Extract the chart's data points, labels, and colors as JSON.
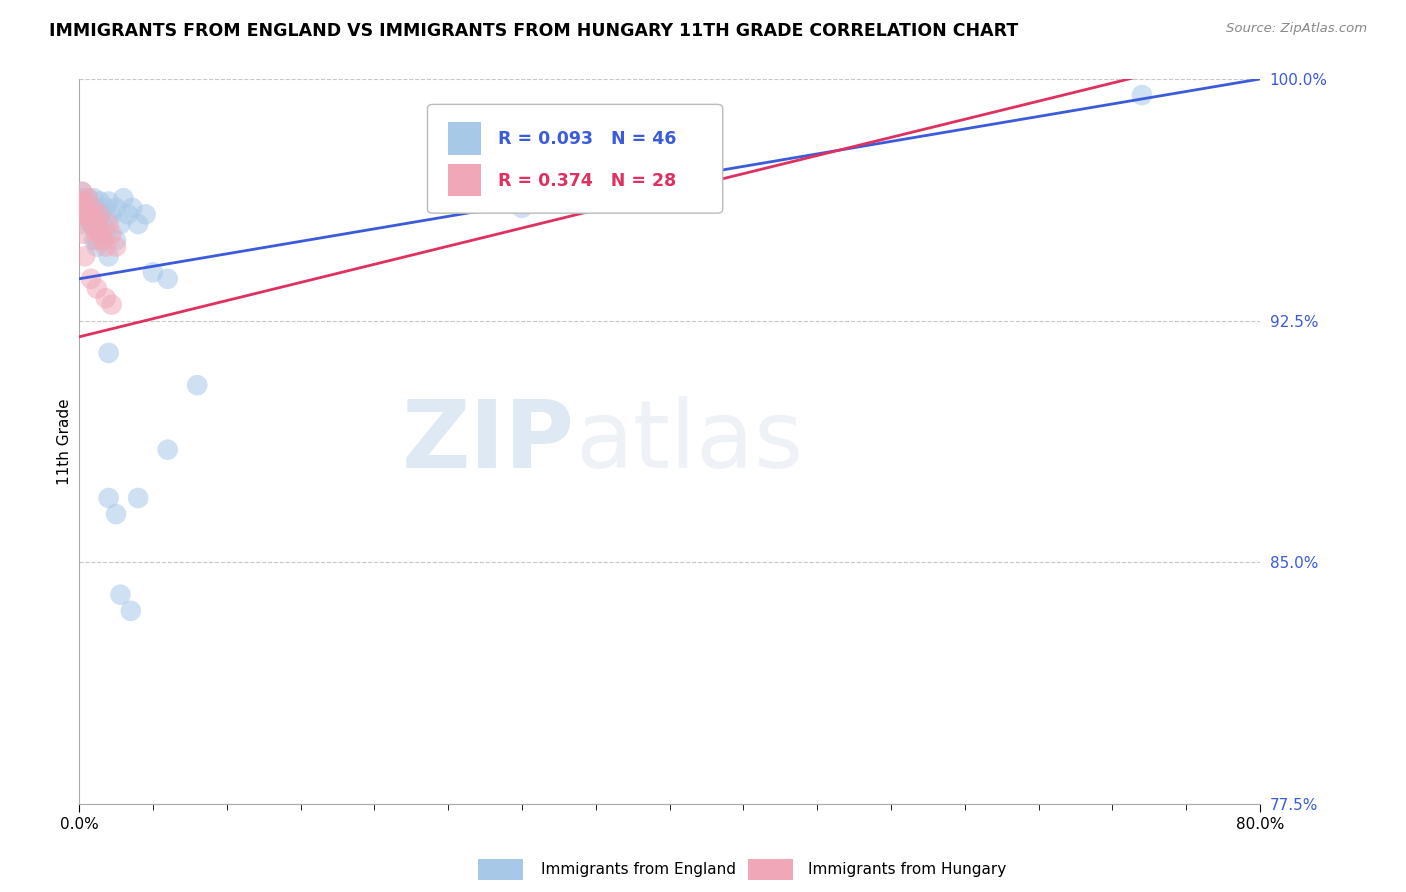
{
  "title": "IMMIGRANTS FROM ENGLAND VS IMMIGRANTS FROM HUNGARY 11TH GRADE CORRELATION CHART",
  "source_text": "Source: ZipAtlas.com",
  "ylabel": "11th Grade",
  "xlim": [
    0.0,
    0.8
  ],
  "ylim": [
    0.775,
    1.0
  ],
  "ytick_values": [
    1.0,
    0.925,
    0.85,
    0.775
  ],
  "ytick_labels": [
    "100.0%",
    "92.5%",
    "85.0%",
    "77.5%"
  ],
  "grid_color": "#c8c8c8",
  "background_color": "#ffffff",
  "england_color": "#a8c8e8",
  "hungary_color": "#f0a8b8",
  "england_line_color": "#3b5bdb",
  "hungary_line_color": "#e03060",
  "england_R": 0.093,
  "england_N": 46,
  "hungary_R": 0.374,
  "hungary_N": 28,
  "england_scatter_x": [
    0.001,
    0.001,
    0.002,
    0.002,
    0.003,
    0.003,
    0.004,
    0.005,
    0.006,
    0.007,
    0.008,
    0.009,
    0.01,
    0.011,
    0.012,
    0.013,
    0.014,
    0.015,
    0.016,
    0.018,
    0.02,
    0.022,
    0.025,
    0.028,
    0.03,
    0.033,
    0.036,
    0.04,
    0.045,
    0.01,
    0.012,
    0.018,
    0.02,
    0.025,
    0.05,
    0.06,
    0.02,
    0.025,
    0.3,
    0.72,
    0.02,
    0.028,
    0.035,
    0.04,
    0.06,
    0.08
  ],
  "england_scatter_y": [
    0.963,
    0.96,
    0.965,
    0.958,
    0.962,
    0.955,
    0.96,
    0.958,
    0.963,
    0.957,
    0.96,
    0.955,
    0.963,
    0.958,
    0.96,
    0.955,
    0.962,
    0.958,
    0.955,
    0.96,
    0.962,
    0.958,
    0.96,
    0.955,
    0.963,
    0.958,
    0.96,
    0.955,
    0.958,
    0.95,
    0.948,
    0.952,
    0.945,
    0.95,
    0.94,
    0.938,
    0.87,
    0.865,
    0.96,
    0.995,
    0.915,
    0.84,
    0.835,
    0.87,
    0.885,
    0.905
  ],
  "hungary_scatter_x": [
    0.001,
    0.001,
    0.002,
    0.002,
    0.003,
    0.003,
    0.004,
    0.005,
    0.006,
    0.007,
    0.008,
    0.009,
    0.01,
    0.011,
    0.012,
    0.013,
    0.014,
    0.015,
    0.016,
    0.018,
    0.02,
    0.022,
    0.025,
    0.004,
    0.008,
    0.012,
    0.018,
    0.022
  ],
  "hungary_scatter_y": [
    0.962,
    0.958,
    0.965,
    0.96,
    0.958,
    0.952,
    0.962,
    0.958,
    0.963,
    0.958,
    0.955,
    0.96,
    0.958,
    0.953,
    0.95,
    0.955,
    0.958,
    0.952,
    0.95,
    0.948,
    0.955,
    0.952,
    0.948,
    0.945,
    0.938,
    0.935,
    0.932,
    0.93
  ],
  "watermark_zip": "ZIP",
  "watermark_atlas": "atlas",
  "legend_england_label": "Immigrants from England",
  "legend_hungary_label": "Immigrants from Hungary"
}
